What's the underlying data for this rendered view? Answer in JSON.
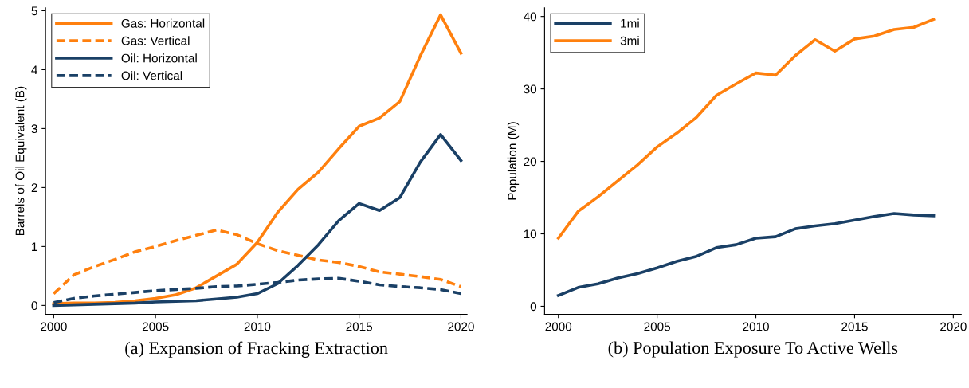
{
  "chart_data": [
    {
      "type": "line",
      "title": "(a) Expansion of Fracking Extraction",
      "ylabel": "Barrels of Oil Equivalent (B)",
      "x": [
        2000,
        2001,
        2002,
        2003,
        2004,
        2005,
        2006,
        2007,
        2008,
        2009,
        2010,
        2011,
        2012,
        2013,
        2014,
        2015,
        2016,
        2017,
        2018,
        2019,
        2020
      ],
      "series": [
        {
          "name": "Gas: Horizontal",
          "color": "#ff800e",
          "line_style": "solid",
          "values": [
            0.03,
            0.04,
            0.04,
            0.05,
            0.08,
            0.12,
            0.18,
            0.3,
            0.5,
            0.7,
            1.07,
            1.58,
            1.97,
            2.26,
            2.66,
            3.04,
            3.18,
            3.46,
            4.23,
            4.93,
            4.28
          ]
        },
        {
          "name": "Gas: Vertical",
          "color": "#ff800e",
          "line_style": "dashed",
          "values": [
            0.2,
            0.52,
            0.66,
            0.78,
            0.91,
            1.0,
            1.1,
            1.19,
            1.28,
            1.2,
            1.05,
            0.93,
            0.85,
            0.77,
            0.73,
            0.66,
            0.57,
            0.53,
            0.49,
            0.44,
            0.32
          ]
        },
        {
          "name": "Oil: Horizontal",
          "color": "#1a4066",
          "line_style": "solid",
          "values": [
            0.0,
            0.01,
            0.02,
            0.03,
            0.04,
            0.06,
            0.07,
            0.08,
            0.11,
            0.14,
            0.2,
            0.37,
            0.68,
            1.03,
            1.44,
            1.73,
            1.61,
            1.83,
            2.43,
            2.9,
            2.46
          ]
        },
        {
          "name": "Oil: Vertical",
          "color": "#1a4066",
          "line_style": "dashed",
          "values": [
            0.05,
            0.12,
            0.16,
            0.19,
            0.22,
            0.25,
            0.27,
            0.29,
            0.32,
            0.33,
            0.36,
            0.39,
            0.43,
            0.45,
            0.46,
            0.41,
            0.35,
            0.32,
            0.3,
            0.27,
            0.2
          ]
        }
      ],
      "xlim": [
        1999.6,
        2020.3
      ],
      "xticks": [
        2000,
        2005,
        2010,
        2015,
        2020
      ],
      "ylim": [
        -0.15,
        5.05
      ],
      "yticks": [
        0,
        1,
        2,
        3,
        4,
        5
      ],
      "grid": false,
      "legend": "top left"
    },
    {
      "type": "line",
      "title": "(b) Population Exposure To Active Wells",
      "ylabel": "Population (M)",
      "x": [
        2000,
        2001,
        2002,
        2003,
        2004,
        2005,
        2006,
        2007,
        2008,
        2009,
        2010,
        2011,
        2012,
        2013,
        2014,
        2015,
        2016,
        2017,
        2018,
        2019
      ],
      "series": [
        {
          "name": "1mi",
          "color": "#1a4066",
          "line_style": "solid",
          "values": [
            1.5,
            2.6,
            3.1,
            3.9,
            4.5,
            5.3,
            6.2,
            6.9,
            8.1,
            8.5,
            9.4,
            9.6,
            10.7,
            11.1,
            11.4,
            11.9,
            12.4,
            12.8,
            12.6,
            12.5
          ]
        },
        {
          "name": "3mi",
          "color": "#ff800e",
          "line_style": "solid",
          "values": [
            9.4,
            13.1,
            15.1,
            17.3,
            19.5,
            22.0,
            23.9,
            26.1,
            29.1,
            30.7,
            32.2,
            31.9,
            34.6,
            36.8,
            35.2,
            36.9,
            37.3,
            38.2,
            38.5,
            39.6
          ]
        }
      ],
      "xlim": [
        1999.3,
        2020.4
      ],
      "xticks": [
        2000,
        2005,
        2010,
        2015,
        2020
      ],
      "ylim": [
        -1.1,
        41.2
      ],
      "yticks": [
        0,
        10,
        20,
        30,
        40
      ],
      "grid": false,
      "legend": "top left"
    }
  ]
}
